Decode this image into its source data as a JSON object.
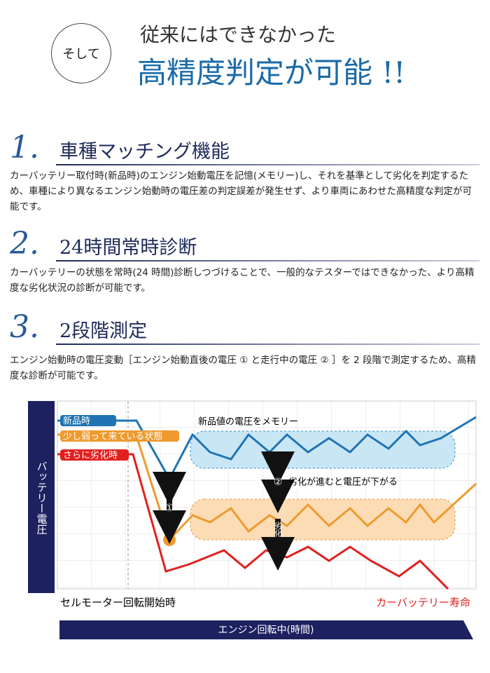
{
  "header": {
    "badge": "そして",
    "line1": "従来にはできなかった",
    "line2": "高精度判定が可能 !!"
  },
  "sections": [
    {
      "number": "1.",
      "title": "車種マッチング機能",
      "body": "カーバッテリー取付時(新品時)のエンジン始動電圧を記憶(メモリー)し、それを基準として劣化を判定するため、車種により異なるエンジン始動時の電圧差の判定誤差が発生せず、より車両にあわせた高精度な判定が可能です。"
    },
    {
      "number": "2.",
      "title": "24時間常時診断",
      "body": "カーバッテリーの状態を常時(24 時間)診断しつづけることで、一般的なテスターではできなかった、より高精度な劣化状況の診断が可能です。"
    },
    {
      "number": "3.",
      "title": "2段階測定",
      "body": "エンジン始動時の電圧変動［エンジン始動直後の電圧 ① と走行中の電圧 ② ］を 2 段階で測定するため、高精度な診断が可能です。"
    }
  ],
  "diagram": {
    "y_axis_label": "バッテリー電圧",
    "x_axis_label": "エンジン回転中(時間)",
    "start_label": "セルモーター回転開始時",
    "end_label": "カーバッテリー寿命",
    "series": [
      "新品時",
      "少し弱って来ている状態",
      "さらに劣化時"
    ],
    "memory": "新品値の電圧をメモリー",
    "drop": "劣化が進むと電圧が下がる",
    "mark1": "①",
    "mark2": "②",
    "degrade": "劣化"
  }
}
